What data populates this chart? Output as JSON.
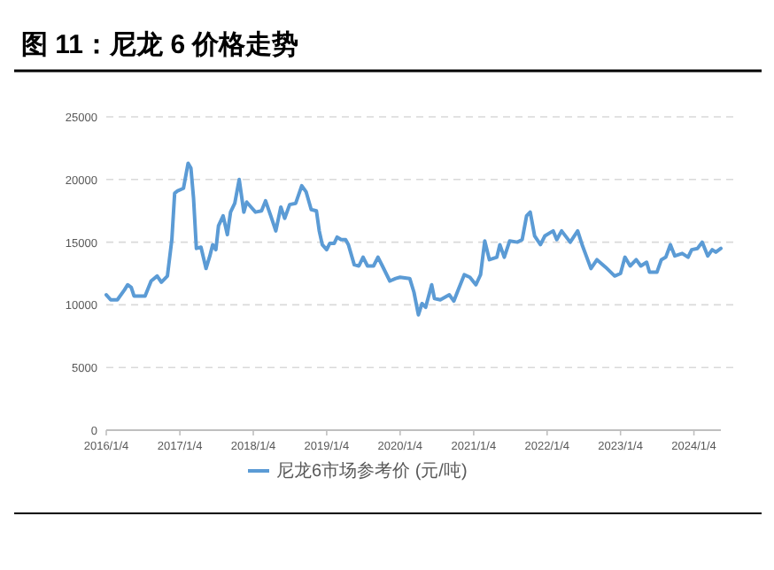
{
  "chart_data": {
    "type": "line",
    "title": "图 11：尼龙 6 价格走势",
    "x": [
      "2016-01-04",
      "2016-01-26",
      "2016-02-28",
      "2016-04-04",
      "2016-04-19",
      "2016-05-07",
      "2016-05-21",
      "2016-07-15",
      "2016-08-14",
      "2016-09-13",
      "2016-10-04",
      "2016-11-03",
      "2016-11-25",
      "2016-12-09",
      "2016-12-24",
      "2017-01-22",
      "2017-02-14",
      "2017-02-28",
      "2017-03-13",
      "2017-03-27",
      "2017-04-19",
      "2017-05-14",
      "2017-06-02",
      "2017-06-16",
      "2017-07-02",
      "2017-07-15",
      "2017-08-07",
      "2017-08-28",
      "2017-09-13",
      "2017-10-04",
      "2017-10-26",
      "2017-11-18",
      "2017-12-02",
      "2017-12-24",
      "2018-01-15",
      "2018-02-14",
      "2018-03-06",
      "2018-04-01",
      "2018-04-26",
      "2018-05-21",
      "2018-06-09",
      "2018-07-04",
      "2018-08-03",
      "2018-09-02",
      "2018-09-24",
      "2018-10-19",
      "2018-11-14",
      "2018-11-28",
      "2018-12-13",
      "2019-01-04",
      "2019-01-19",
      "2019-02-10",
      "2019-02-25",
      "2019-03-17",
      "2019-04-08",
      "2019-04-22",
      "2019-05-21",
      "2019-06-13",
      "2019-07-04",
      "2019-07-26",
      "2019-08-25",
      "2019-09-16",
      "2019-10-08",
      "2019-11-14",
      "2019-12-13",
      "2020-01-04",
      "2020-02-21",
      "2020-03-13",
      "2020-04-04",
      "2020-04-22",
      "2020-05-10",
      "2020-06-09",
      "2020-06-23",
      "2020-07-22",
      "2020-09-05",
      "2020-09-27",
      "2020-10-19",
      "2020-11-18",
      "2020-12-16",
      "2021-01-15",
      "2021-02-07",
      "2021-02-28",
      "2021-03-23",
      "2021-04-29",
      "2021-05-14",
      "2021-06-05",
      "2021-07-02",
      "2021-08-10",
      "2021-09-02",
      "2021-09-24",
      "2021-10-12",
      "2021-11-03",
      "2021-12-02",
      "2021-12-24",
      "2022-02-03",
      "2022-02-21",
      "2022-03-17",
      "2022-04-29",
      "2022-06-05",
      "2022-06-27",
      "2022-08-10",
      "2022-09-09",
      "2022-10-22",
      "2022-12-06",
      "2023-01-04",
      "2023-01-26",
      "2023-02-21",
      "2023-03-23",
      "2023-04-15",
      "2023-05-14",
      "2023-05-28",
      "2023-07-04",
      "2023-07-26",
      "2023-08-17",
      "2023-09-09",
      "2023-10-01",
      "2023-11-07",
      "2023-12-06",
      "2023-12-24",
      "2024-01-22",
      "2024-02-14",
      "2024-03-13",
      "2024-04-04",
      "2024-04-22",
      "2024-05-17"
    ],
    "series": [
      {
        "name": "尼龙6市场参考价 (元/吨)",
        "color": "#5b9bd5",
        "values": [
          10800,
          10400,
          10400,
          11200,
          11600,
          11400,
          10700,
          10700,
          11900,
          12300,
          11800,
          12300,
          15200,
          18900,
          19100,
          19300,
          21300,
          20900,
          18500,
          14500,
          14600,
          12900,
          13900,
          14800,
          14400,
          16300,
          17100,
          15600,
          17400,
          18100,
          20000,
          17400,
          18200,
          17800,
          17400,
          17500,
          18300,
          17100,
          15900,
          17800,
          16900,
          18000,
          18100,
          19500,
          19000,
          17600,
          17500,
          15900,
          14800,
          14400,
          14900,
          14900,
          15400,
          15200,
          15200,
          14800,
          13200,
          13100,
          13800,
          13100,
          13100,
          13800,
          13100,
          11900,
          12100,
          12200,
          12100,
          11000,
          9200,
          10100,
          9800,
          11600,
          10500,
          10400,
          10800,
          10300,
          11200,
          12400,
          12200,
          11600,
          12400,
          15100,
          13600,
          13800,
          14800,
          13800,
          15100,
          15000,
          15200,
          17100,
          17400,
          15500,
          14800,
          15500,
          15900,
          15200,
          15900,
          15000,
          15900,
          14800,
          12900,
          13600,
          13000,
          12300,
          12500,
          13800,
          13100,
          13600,
          13100,
          13400,
          12600,
          12600,
          13600,
          13800,
          14800,
          13900,
          14100,
          13800,
          14400,
          14500,
          15000,
          13900,
          14400,
          14200,
          14500
        ]
      }
    ],
    "xlim": [
      "2016-01-04",
      "2024-05-17"
    ],
    "xticks": [
      {
        "value": "2016-01-04",
        "label": "2016/1/4"
      },
      {
        "value": "2017-01-04",
        "label": "2017/1/4"
      },
      {
        "value": "2018-01-04",
        "label": "2018/1/4"
      },
      {
        "value": "2019-01-04",
        "label": "2019/1/4"
      },
      {
        "value": "2020-01-04",
        "label": "2020/1/4"
      },
      {
        "value": "2021-01-04",
        "label": "2021/1/4"
      },
      {
        "value": "2022-01-04",
        "label": "2022/1/4"
      },
      {
        "value": "2023-01-04",
        "label": "2023/1/4"
      },
      {
        "value": "2024-01-04",
        "label": "2024/1/4"
      }
    ],
    "ylim": [
      0,
      25000
    ],
    "yticks": [
      0,
      5000,
      10000,
      15000,
      20000,
      25000
    ],
    "grid": "y",
    "legend": "bottom",
    "marker": "none",
    "line_style": "solid"
  }
}
